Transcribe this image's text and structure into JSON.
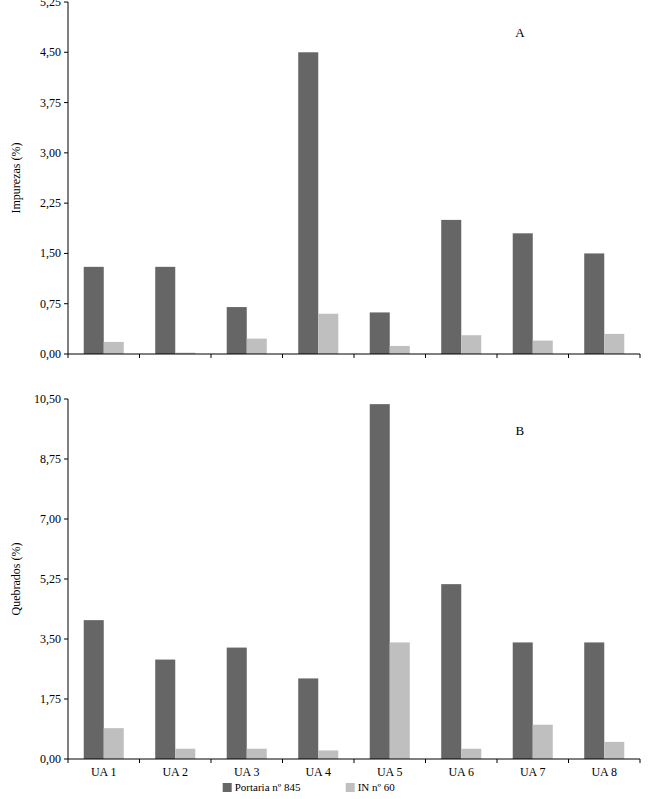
{
  "chart_data": [
    {
      "type": "bar",
      "annotation": "A",
      "ylabel": "Impurezas (%)",
      "categories": [
        "UA 1",
        "UA 2",
        "UA 3",
        "UA 4",
        "UA 5",
        "UA 6",
        "UA 7",
        "UA 8"
      ],
      "series": [
        {
          "name": "Portaria nº 845",
          "color": "#666666",
          "values": [
            1.3,
            1.3,
            0.7,
            4.5,
            0.62,
            2.0,
            1.8,
            1.5
          ]
        },
        {
          "name": "IN nº 60",
          "color": "#bfbfbf",
          "values": [
            0.18,
            0.02,
            0.23,
            0.6,
            0.12,
            0.28,
            0.2,
            0.3
          ]
        }
      ],
      "ylim": [
        0,
        5.25
      ],
      "yticks": [
        {
          "value": 0,
          "label": "0,00"
        },
        {
          "value": 0.75,
          "label": "0,75"
        },
        {
          "value": 1.5,
          "label": "1,50"
        },
        {
          "value": 2.25,
          "label": "2,25"
        },
        {
          "value": 3,
          "label": "3,00"
        },
        {
          "value": 3.75,
          "label": "3,75"
        },
        {
          "value": 4.5,
          "label": "4,50"
        },
        {
          "value": 5.25,
          "label": "5,25"
        }
      ],
      "tick_labels": "y",
      "grid": false
    },
    {
      "type": "bar",
      "annotation": "B",
      "ylabel": "Quebrados (%)",
      "categories": [
        "UA 1",
        "UA 2",
        "UA 3",
        "UA 4",
        "UA 5",
        "UA 6",
        "UA 7",
        "UA 8"
      ],
      "series": [
        {
          "name": "Portaria nº 845",
          "color": "#666666",
          "values": [
            4.05,
            2.9,
            3.25,
            2.35,
            10.35,
            5.1,
            3.4,
            3.4
          ]
        },
        {
          "name": "IN nº 60",
          "color": "#bfbfbf",
          "values": [
            0.9,
            0.3,
            0.3,
            0.25,
            3.4,
            0.3,
            1.0,
            0.5
          ]
        }
      ],
      "ylim": [
        0,
        10.5
      ],
      "yticks": [
        {
          "value": 0,
          "label": "0,00"
        },
        {
          "value": 1.75,
          "label": "1,75"
        },
        {
          "value": 3.5,
          "label": "3,50"
        },
        {
          "value": 5.25,
          "label": "5,25"
        },
        {
          "value": 7,
          "label": "7,00"
        },
        {
          "value": 8.75,
          "label": "8,75"
        },
        {
          "value": 10.5,
          "label": "10,50"
        }
      ],
      "grid": false,
      "legend": "bottom"
    }
  ]
}
